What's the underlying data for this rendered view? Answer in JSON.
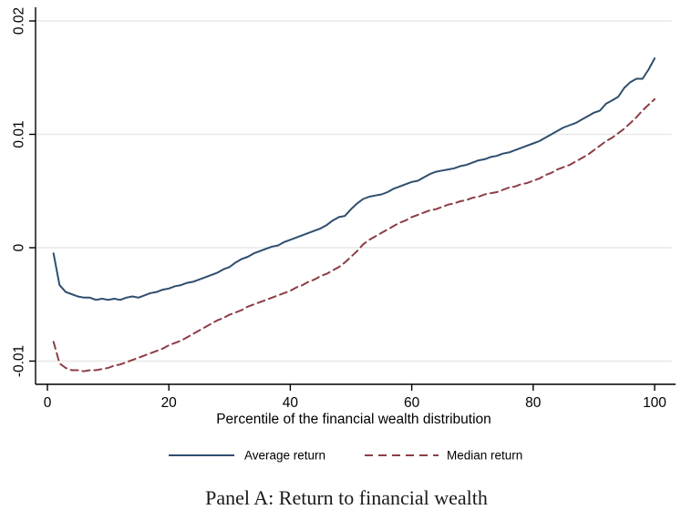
{
  "colors": {
    "background": "#ffffff",
    "grid": "#e8e8e8",
    "axis": "#000000",
    "text": "#000000",
    "average_line": "#2e4e6e",
    "median_line": "#8d3d45"
  },
  "chart_data": {
    "type": "line",
    "title": "Panel A: Return to financial wealth",
    "xlabel": "Percentile of the financial wealth distribution",
    "ylabel": "",
    "xlim": [
      0,
      103
    ],
    "ylim": [
      -0.012,
      0.021
    ],
    "grid": "horizontal",
    "legend_position": "bottom-center",
    "xticks": {
      "values": [
        0,
        20,
        40,
        60,
        80,
        100
      ],
      "labels": [
        "0",
        "20",
        "40",
        "60",
        "80",
        "100"
      ]
    },
    "yticks": {
      "values": [
        0.02,
        0.01,
        0,
        -0.01
      ],
      "labels": [
        "0.02",
        "0.01",
        "0",
        "-0.01"
      ]
    },
    "x": [
      1,
      2,
      3,
      4,
      5,
      6,
      7,
      8,
      9,
      10,
      11,
      12,
      13,
      14,
      15,
      16,
      17,
      18,
      19,
      20,
      21,
      22,
      23,
      24,
      25,
      26,
      27,
      28,
      29,
      30,
      31,
      32,
      33,
      34,
      35,
      36,
      37,
      38,
      39,
      40,
      41,
      42,
      43,
      44,
      45,
      46,
      47,
      48,
      49,
      50,
      51,
      52,
      53,
      54,
      55,
      56,
      57,
      58,
      59,
      60,
      61,
      62,
      63,
      64,
      65,
      66,
      67,
      68,
      69,
      70,
      71,
      72,
      73,
      74,
      75,
      76,
      77,
      78,
      79,
      80,
      81,
      82,
      83,
      84,
      85,
      86,
      87,
      88,
      89,
      90,
      91,
      92,
      93,
      94,
      95,
      96,
      97,
      98,
      99,
      100
    ],
    "series": [
      {
        "name": "Average return",
        "style": "solid",
        "color": "#2e4e6e",
        "values": [
          -0.0005,
          -0.0033,
          -0.0039,
          -0.0041,
          -0.0043,
          -0.0044,
          -0.0044,
          -0.0046,
          -0.0045,
          -0.0046,
          -0.0045,
          -0.0046,
          -0.0044,
          -0.0043,
          -0.0044,
          -0.0042,
          -0.004,
          -0.0039,
          -0.0037,
          -0.0036,
          -0.0034,
          -0.0033,
          -0.0031,
          -0.003,
          -0.0028,
          -0.0026,
          -0.0024,
          -0.0022,
          -0.0019,
          -0.0017,
          -0.0013,
          -0.001,
          -0.0008,
          -0.0005,
          -0.0003,
          -0.0001,
          0.0001,
          0.0002,
          0.0005,
          0.0007,
          0.0009,
          0.0011,
          0.0013,
          0.0015,
          0.0017,
          0.002,
          0.0024,
          0.0027,
          0.0028,
          0.0034,
          0.0039,
          0.0043,
          0.0045,
          0.0046,
          0.0047,
          0.0049,
          0.0052,
          0.0054,
          0.0056,
          0.0058,
          0.0059,
          0.0062,
          0.0065,
          0.0067,
          0.0068,
          0.0069,
          0.007,
          0.0072,
          0.0073,
          0.0075,
          0.0077,
          0.0078,
          0.008,
          0.0081,
          0.0083,
          0.0084,
          0.0086,
          0.0088,
          0.009,
          0.0092,
          0.0094,
          0.0097,
          0.01,
          0.0103,
          0.0106,
          0.0108,
          0.011,
          0.0113,
          0.0116,
          0.0119,
          0.0121,
          0.0127,
          0.013,
          0.0133,
          0.0141,
          0.0146,
          0.0149,
          0.0149,
          0.0157,
          0.0167
        ]
      },
      {
        "name": "Median return",
        "style": "dashed",
        "color": "#8d3d45",
        "values": [
          -0.0083,
          -0.0102,
          -0.0106,
          -0.0108,
          -0.0108,
          -0.0109,
          -0.0108,
          -0.0108,
          -0.0107,
          -0.0106,
          -0.0104,
          -0.0103,
          -0.0101,
          -0.0099,
          -0.0097,
          -0.0095,
          -0.0093,
          -0.0091,
          -0.0089,
          -0.0086,
          -0.0084,
          -0.0082,
          -0.0079,
          -0.0076,
          -0.0073,
          -0.007,
          -0.0067,
          -0.0064,
          -0.0062,
          -0.0059,
          -0.0057,
          -0.0055,
          -0.0052,
          -0.005,
          -0.0048,
          -0.0046,
          -0.0044,
          -0.0042,
          -0.004,
          -0.0038,
          -0.0035,
          -0.0033,
          -0.003,
          -0.0028,
          -0.0025,
          -0.0023,
          -0.002,
          -0.0017,
          -0.0013,
          -0.0008,
          -0.0003,
          0.0003,
          0.0007,
          0.001,
          0.0013,
          0.0016,
          0.0019,
          0.0022,
          0.0024,
          0.0027,
          0.0029,
          0.0031,
          0.0033,
          0.0034,
          0.0036,
          0.0038,
          0.0039,
          0.0041,
          0.0042,
          0.0044,
          0.0045,
          0.0047,
          0.0048,
          0.0049,
          0.0051,
          0.0053,
          0.0054,
          0.0056,
          0.0057,
          0.0059,
          0.0061,
          0.0064,
          0.0066,
          0.0069,
          0.0071,
          0.0073,
          0.0076,
          0.0079,
          0.0082,
          0.0086,
          0.009,
          0.0094,
          0.0097,
          0.0101,
          0.0105,
          0.011,
          0.0115,
          0.0121,
          0.0126,
          0.0131
        ]
      }
    ]
  }
}
